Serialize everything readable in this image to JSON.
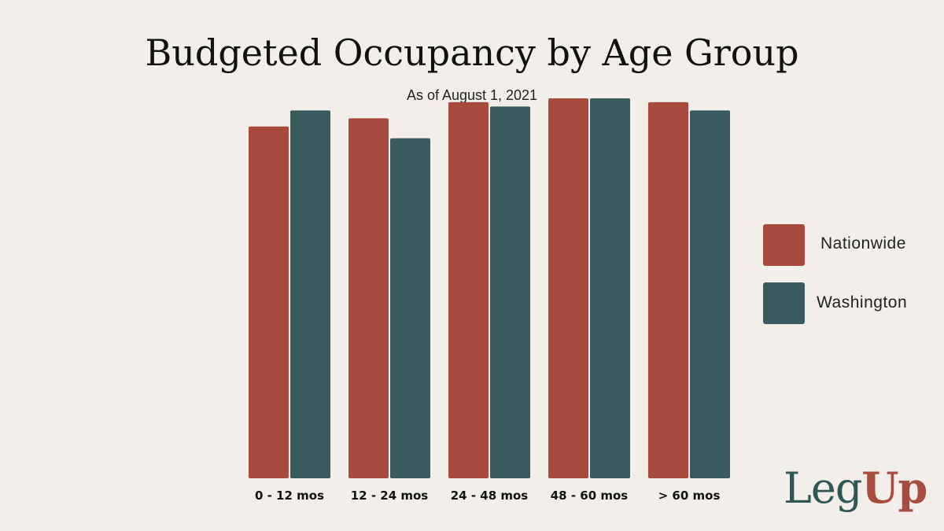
{
  "title": "Budgeted Occupancy by Age Group",
  "subtitle": "As of August 1, 2021",
  "colors": {
    "nationwide": "#a84a3d",
    "washington": "#3a5b5d"
  },
  "logo": {
    "part1": "Leg",
    "part2": "Up"
  },
  "chart_data": {
    "type": "bar",
    "title": "Budgeted Occupancy by Age Group",
    "subtitle": "As of August 1, 2021",
    "categories": [
      "0 - 12 mos",
      "12 - 24 mos",
      "24 - 48 mos",
      "48 - 60 mos",
      "> 60 mos"
    ],
    "series": [
      {
        "name": "Nationwide",
        "values": [
          89.8,
          91.9,
          96.0,
          97.0,
          96.0
        ]
      },
      {
        "name": "Washington",
        "values": [
          93.9,
          86.8,
          94.9,
          97.0,
          93.9
        ]
      }
    ],
    "ylim": [
      0,
      100
    ],
    "grid": false,
    "legend": "right"
  }
}
